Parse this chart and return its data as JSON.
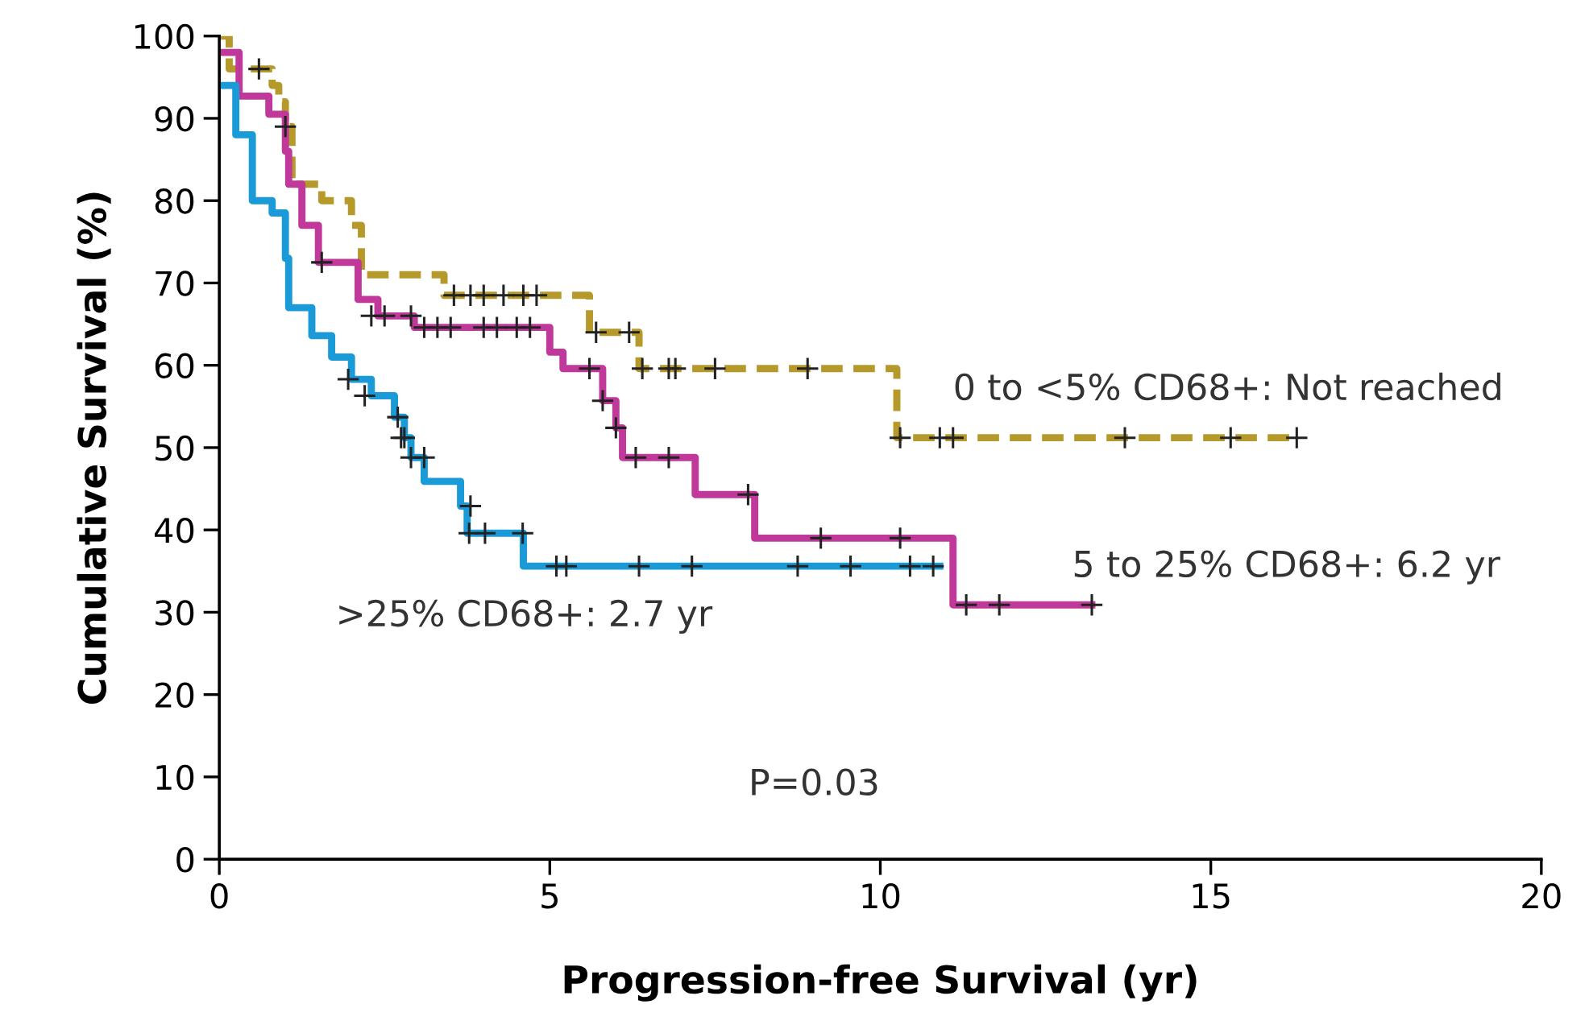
{
  "chart_data": {
    "type": "step",
    "xlabel": "Progression-free Survival (yr)",
    "ylabel": "Cumulative Survival (%)",
    "xlim": [
      0,
      20
    ],
    "ylim": [
      0,
      100
    ],
    "xticks": [
      0,
      5,
      10,
      15,
      20
    ],
    "yticks": [
      0,
      10,
      20,
      30,
      40,
      50,
      60,
      70,
      80,
      90,
      100
    ],
    "grid": false,
    "legend": false,
    "series": [
      {
        "color": "#b59a2b",
        "line_style": "dashed",
        "x": [
          0,
          0.15,
          0.8,
          0.9,
          1.0,
          1.1,
          1.55,
          2.0,
          2.15,
          3.4,
          5.6,
          6.35,
          10.25,
          16.3
        ],
        "values": [
          100,
          96,
          94,
          92,
          89,
          82,
          80,
          77,
          71,
          68.5,
          64,
          59.6,
          51.2,
          51.2
        ]
      },
      {
        "color": "#c0399a",
        "line_style": "solid",
        "x": [
          0,
          0.3,
          0.75,
          1.0,
          1.05,
          1.25,
          1.5,
          2.1,
          2.4,
          2.95,
          5.0,
          5.2,
          5.8,
          6.0,
          6.1,
          7.2,
          8.1,
          11.1,
          13.2
        ],
        "values": [
          98,
          92.7,
          90.5,
          86,
          82,
          77,
          72.5,
          68,
          66,
          64.6,
          61.6,
          59.6,
          55.7,
          52.4,
          48.8,
          44.3,
          39,
          30.9,
          30.9
        ]
      },
      {
        "color": "#1a9ad6",
        "line_style": "solid",
        "x": [
          0,
          0.25,
          0.5,
          0.8,
          1.0,
          1.05,
          1.4,
          1.7,
          2.0,
          2.3,
          2.65,
          2.8,
          2.9,
          3.1,
          3.65,
          3.75,
          4.6,
          10.9
        ],
        "values": [
          94,
          88,
          80,
          78.5,
          73,
          67,
          63.6,
          61,
          58.3,
          56.3,
          53.7,
          51.2,
          48.8,
          45.9,
          42.9,
          39.6,
          35.6,
          35.6
        ]
      },
      {
        "type": "scatter",
        "color": "#222222",
        "marker": "cross",
        "x": [
          0.6,
          1.0,
          3.55,
          3.8,
          4.0,
          4.3,
          4.6,
          4.8,
          5.7,
          6.2,
          6.4,
          6.8,
          6.9,
          7.5,
          8.9,
          10.3,
          10.9,
          11.1,
          13.7,
          15.3,
          16.3
        ],
        "values": [
          96,
          89,
          68.5,
          68.5,
          68.5,
          68.5,
          68.5,
          68.5,
          64,
          64,
          59.6,
          59.6,
          59.6,
          59.6,
          59.6,
          51.2,
          51.2,
          51.2,
          51.2,
          51.2,
          51.2
        ]
      },
      {
        "type": "scatter",
        "color": "#222222",
        "marker": "cross",
        "x": [
          1.55,
          2.3,
          2.5,
          2.9,
          3.1,
          3.3,
          3.5,
          4.0,
          4.2,
          4.5,
          4.7,
          5.6,
          5.8,
          6.0,
          6.3,
          6.8,
          8.0,
          9.1,
          10.3,
          11.3,
          11.8,
          13.2
        ],
        "values": [
          72.5,
          66,
          66,
          66,
          64.6,
          64.6,
          64.6,
          64.6,
          64.6,
          64.6,
          64.6,
          59.6,
          55.7,
          52.4,
          48.8,
          48.8,
          44.3,
          39,
          39,
          30.9,
          30.9,
          30.9
        ]
      },
      {
        "type": "scatter",
        "color": "#222222",
        "marker": "cross",
        "x": [
          1.95,
          2.2,
          2.7,
          2.75,
          2.8,
          2.9,
          3.1,
          3.8,
          3.78,
          4.02,
          4.59,
          5.1,
          5.25,
          6.35,
          7.15,
          8.75,
          9.55,
          10.45,
          10.8
        ],
        "values": [
          58.3,
          56.3,
          53.7,
          51.2,
          51.2,
          48.8,
          48.8,
          42.9,
          39.6,
          39.6,
          39.6,
          35.6,
          35.6,
          35.6,
          35.6,
          35.6,
          35.6,
          35.6,
          35.6
        ]
      }
    ],
    "annotations": [
      "0 to <5% CD68+: Not reached",
      "5 to 25% CD68+: 6.2 yr",
      ">25% CD68+: 2.7 yr",
      "P=0.03"
    ]
  }
}
